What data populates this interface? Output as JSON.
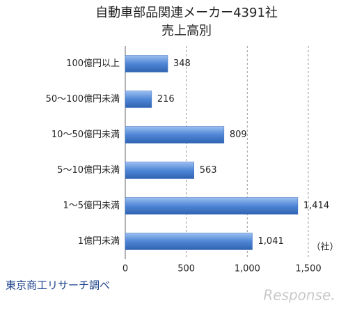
{
  "chart_data": {
    "type": "bar",
    "orientation": "horizontal",
    "title": "自動車部品関連メーカー4391社",
    "subtitle": "売上高別",
    "categories": [
      "100億円以上",
      "50～100億円未満",
      "10～50億円未満",
      "5～10億円未満",
      "1～5億円未満",
      "1億円未満"
    ],
    "values": [
      348,
      216,
      809,
      563,
      1414,
      1041
    ],
    "value_labels": [
      "348",
      "216",
      "809",
      "563",
      "1,414",
      "1,041"
    ],
    "color": "#4f86d6",
    "xlim": [
      0,
      1500
    ],
    "xticks": [
      0,
      500,
      {
        "value": 1000,
        "label": "1,000"
      },
      {
        "value": 1500,
        "label": "1,500"
      }
    ],
    "grid": true,
    "unit_label": "（社）",
    "source": "東京商工リサーチ調べ",
    "watermark": "Response."
  }
}
